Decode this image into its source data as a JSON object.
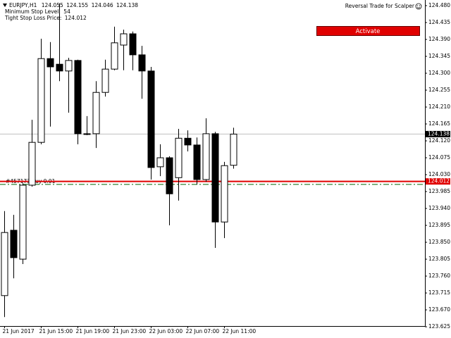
{
  "chart_data": {
    "type": "candlestick",
    "symbol": "EURJPY,H1",
    "indicator_name": "Reversal Trade for Scalper",
    "button_label": "Activate",
    "min_stop_label": "Minimum Stop Level:",
    "min_stop_level": 54,
    "sl_label": "Tight Stop Loss Price:",
    "sl_price": 124.012,
    "order_label": "#457173 buy 0.01",
    "order_price": 124.004,
    "categories": [
      "21 Jun 2017",
      null,
      null,
      null,
      "21 Jun 15:00",
      null,
      null,
      null,
      "21 Jun 19:00",
      null,
      null,
      null,
      "21 Jun 23:00",
      null,
      null,
      null,
      "22 Jun 03:00",
      null,
      null,
      null,
      "22 Jun 07:00",
      null,
      null,
      null,
      "22 Jun 11:00",
      null
    ],
    "open": [
      123.708,
      123.882,
      123.805,
      124.002,
      124.116,
      124.339,
      124.324,
      124.306,
      124.334,
      124.139,
      124.139,
      124.249,
      124.311,
      124.375,
      124.405,
      124.349,
      124.306,
      124.051,
      124.075,
      124.022,
      124.127,
      124.109,
      124.017,
      124.139,
      123.904,
      124.055
    ],
    "high": [
      123.933,
      123.923,
      124.007,
      124.176,
      124.392,
      124.383,
      124.486,
      124.341,
      124.336,
      124.186,
      124.279,
      124.336,
      124.424,
      124.416,
      124.411,
      124.373,
      124.317,
      124.111,
      124.079,
      124.152,
      124.148,
      124.129,
      124.18,
      124.144,
      124.064,
      124.155
    ],
    "low": [
      123.651,
      123.754,
      123.792,
      123.998,
      124.111,
      124.158,
      124.279,
      124.195,
      124.111,
      124.135,
      124.101,
      124.238,
      124.308,
      124.308,
      124.308,
      124.232,
      124.017,
      124.026,
      123.895,
      123.961,
      124.092,
      124.004,
      124.011,
      123.835,
      123.861,
      124.046
    ],
    "close": [
      123.876,
      123.809,
      124.002,
      124.116,
      124.339,
      124.317,
      124.306,
      124.334,
      124.139,
      124.137,
      124.249,
      124.311,
      124.381,
      124.405,
      124.349,
      124.306,
      124.049,
      124.075,
      123.979,
      124.127,
      124.109,
      124.017,
      124.139,
      123.904,
      124.054,
      124.138
    ],
    "up_color": "#ffffff",
    "down_color": "#000000",
    "bid_line_color": "#c0c0c0",
    "sl_line_color": "#e00000",
    "order_line_color": "#006400",
    "ylim": [
      123.627,
      124.495
    ],
    "yticks": [
      {
        "value": 124.48,
        "label": "124.480"
      },
      124.435,
      {
        "value": 124.39,
        "label": "124.390"
      },
      124.345,
      {
        "value": 124.3,
        "label": "124.300"
      },
      124.255,
      {
        "value": 124.21,
        "label": "124.210"
      },
      124.165,
      {
        "value": 124.12,
        "label": "124.120"
      },
      124.075,
      {
        "value": 124.03,
        "label": "124.030"
      },
      123.985,
      {
        "value": 123.94,
        "label": "123.940"
      },
      123.895,
      {
        "value": 123.85,
        "label": "123.850"
      },
      123.805,
      {
        "value": 123.76,
        "label": "123.760"
      },
      123.715,
      {
        "value": 123.67,
        "label": "123.670"
      },
      123.625
    ]
  }
}
